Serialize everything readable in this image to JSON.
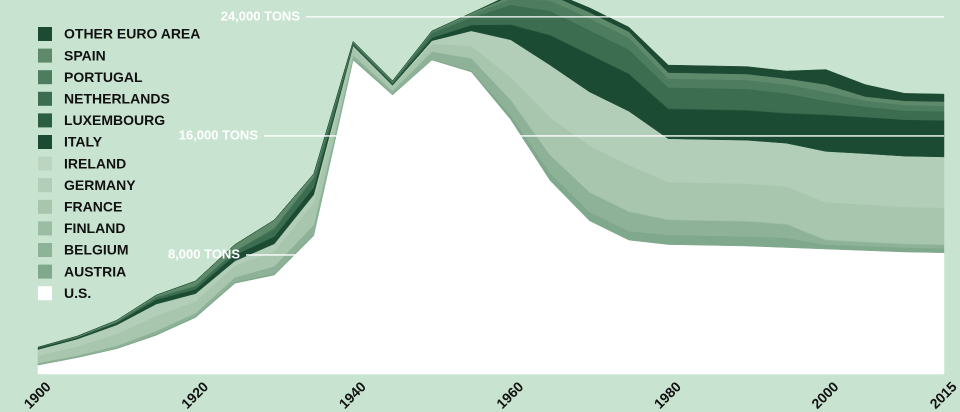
{
  "chart_data": {
    "type": "stacked_area",
    "x": [
      1900,
      1905,
      1910,
      1915,
      1920,
      1925,
      1930,
      1935,
      1940,
      1945,
      1950,
      1955,
      1960,
      1965,
      1970,
      1975,
      1980,
      1985,
      1990,
      1995,
      2000,
      2005,
      2010,
      2015
    ],
    "xlim": [
      1900,
      2015
    ],
    "xticks": [
      1900,
      1920,
      1940,
      1960,
      1980,
      2000,
      2015
    ],
    "ylim": [
      0,
      25000
    ],
    "yticks": [
      {
        "value": 8000,
        "label": "8,000 TONS"
      },
      {
        "value": 16000,
        "label": "16,000 TONS"
      },
      {
        "value": 24000,
        "label": "24,000 TONS"
      }
    ],
    "grid": true,
    "legend": "upper left",
    "series": [
      {
        "name": "U.S.",
        "color": "#ffffff",
        "values": [
          600,
          1100,
          1700,
          2600,
          3800,
          6100,
          6650,
          9300,
          21100,
          18750,
          21100,
          20300,
          17100,
          13000,
          10300,
          9000,
          8700,
          8650,
          8600,
          8500,
          8400,
          8300,
          8200,
          8150
        ]
      },
      {
        "name": "AUSTRIA",
        "color": "#7fa88c",
        "values": [
          50,
          50,
          50,
          100,
          100,
          100,
          100,
          100,
          100,
          50,
          50,
          100,
          300,
          500,
          600,
          600,
          650,
          650,
          650,
          650,
          300,
          300,
          300,
          300
        ]
      },
      {
        "name": "BELGIUM",
        "color": "#8db298",
        "values": [
          100,
          100,
          150,
          200,
          200,
          300,
          500,
          600,
          200,
          200,
          500,
          800,
          1000,
          1200,
          1300,
          1300,
          1000,
          1000,
          1000,
          900,
          300,
          250,
          230,
          230
        ]
      },
      {
        "name": "FINLAND",
        "color": "#9bbda4",
        "values": [
          0,
          0,
          0,
          0,
          0,
          0,
          0,
          50,
          50,
          50,
          50,
          50,
          50,
          50,
          50,
          50,
          50,
          50,
          50,
          50,
          50,
          50,
          50,
          50
        ]
      },
      {
        "name": "FRANCE",
        "color": "#a8c6ae",
        "values": [
          500,
          600,
          800,
          1000,
          800,
          800,
          1000,
          1500,
          500,
          300,
          500,
          800,
          1500,
          2500,
          3100,
          3100,
          2500,
          2500,
          2500,
          2500,
          2500,
          2500,
          2450,
          2450
        ]
      },
      {
        "name": "GERMANY",
        "color": "#b3ceb8",
        "values": [
          400,
          500,
          600,
          800,
          500,
          300,
          500,
          500,
          100,
          50,
          200,
          1000,
          2500,
          3500,
          3600,
          3600,
          2900,
          2900,
          2900,
          2900,
          3400,
          3400,
          3400,
          3400
        ]
      },
      {
        "name": "IRELAND",
        "color": "#bcd5c0",
        "values": [
          0,
          0,
          0,
          0,
          0,
          0,
          0,
          0,
          0,
          0,
          0,
          10,
          10,
          10,
          10,
          10,
          10,
          10,
          10,
          10,
          10,
          10,
          10,
          10
        ]
      },
      {
        "name": "ITALY",
        "color": "#1b4c33",
        "values": [
          100,
          100,
          150,
          300,
          300,
          400,
          500,
          500,
          100,
          100,
          200,
          400,
          1000,
          2000,
          2500,
          2500,
          2000,
          2000,
          2000,
          2000,
          2450,
          2450,
          2450,
          2450
        ]
      },
      {
        "name": "LUXEMBOURG",
        "color": "#2b5d41",
        "values": [
          0,
          0,
          0,
          0,
          0,
          0,
          0,
          0,
          0,
          0,
          0,
          0,
          50,
          50,
          50,
          50,
          50,
          50,
          50,
          50,
          50,
          10,
          10,
          10
        ]
      },
      {
        "name": "NETHERLANDS",
        "color": "#3c6d50",
        "values": [
          50,
          50,
          60,
          150,
          200,
          250,
          500,
          600,
          100,
          100,
          300,
          500,
          1300,
          1600,
          1600,
          1600,
          1400,
          1400,
          1400,
          1300,
          900,
          700,
          600,
          600
        ]
      },
      {
        "name": "PORTUGAL",
        "color": "#4d7c5e",
        "values": [
          0,
          0,
          0,
          50,
          50,
          50,
          100,
          100,
          50,
          50,
          100,
          200,
          400,
          700,
          800,
          800,
          600,
          600,
          600,
          600,
          600,
          400,
          380,
          380
        ]
      },
      {
        "name": "SPAIN",
        "color": "#5e8a6b",
        "values": [
          0,
          50,
          100,
          100,
          300,
          400,
          500,
          200,
          50,
          50,
          50,
          100,
          200,
          400,
          400,
          400,
          400,
          400,
          400,
          400,
          500,
          280,
          280,
          280
        ]
      },
      {
        "name": "OTHER EURO AREA",
        "color": "#1d4a32",
        "values": [
          0,
          0,
          0,
          0,
          0,
          0,
          0,
          0,
          0,
          0,
          0,
          0,
          100,
          200,
          300,
          300,
          500,
          500,
          500,
          500,
          1000,
          800,
          500,
          500
        ]
      }
    ]
  }
}
